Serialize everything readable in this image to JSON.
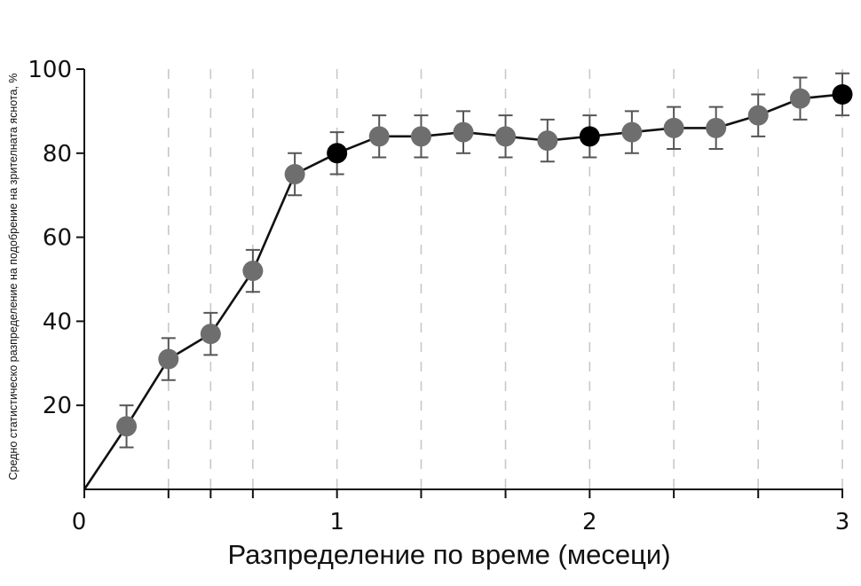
{
  "chart_data": {
    "type": "scatter",
    "xlabel": "Разпределение по време (месеци)",
    "ylabel": "Средно статистическо разпределение на подобрение на зрителната яснота, %",
    "xlim": [
      0,
      3
    ],
    "ylim": [
      0,
      100
    ],
    "x_ticks": [
      0,
      1,
      2,
      3
    ],
    "x_tick_labels": [
      "0",
      "1",
      "2",
      "3"
    ],
    "y_ticks": [
      20,
      40,
      60,
      80,
      100
    ],
    "y_tick_labels": [
      "20",
      "40",
      "60",
      "80",
      "100"
    ],
    "x_gridlines": [
      0.333,
      0.5,
      0.667,
      1,
      1.333,
      1.667,
      2,
      2.333,
      2.667,
      3
    ],
    "grid": "vertical dashed",
    "legend": "none",
    "colors": {
      "line": "#111111",
      "marker_default": "#6e6e6e",
      "marker_highlight": "#000000",
      "error_bar": "#555555",
      "grid": "#c8c8c8"
    },
    "series": [
      {
        "x": [
          0,
          0.167,
          0.333,
          0.5,
          0.667,
          0.833,
          1,
          1.167,
          1.333,
          1.5,
          1.667,
          1.833,
          2,
          2.167,
          2.333,
          2.5,
          2.667,
          2.833,
          3
        ],
        "y": [
          0,
          15,
          31,
          37,
          52,
          75,
          80,
          84,
          84,
          85,
          84,
          83,
          84,
          85,
          86,
          86,
          89,
          93,
          94
        ],
        "err": [
          0,
          5,
          5,
          5,
          5,
          5,
          5,
          5,
          5,
          5,
          5,
          5,
          5,
          5,
          5,
          5,
          5,
          5,
          5
        ],
        "marker": [
          false,
          true,
          true,
          true,
          true,
          true,
          true,
          true,
          true,
          true,
          true,
          true,
          true,
          true,
          true,
          true,
          true,
          true,
          true
        ],
        "highlight": [
          false,
          false,
          false,
          false,
          false,
          false,
          true,
          false,
          false,
          false,
          false,
          false,
          true,
          false,
          false,
          false,
          false,
          false,
          true
        ]
      }
    ]
  }
}
